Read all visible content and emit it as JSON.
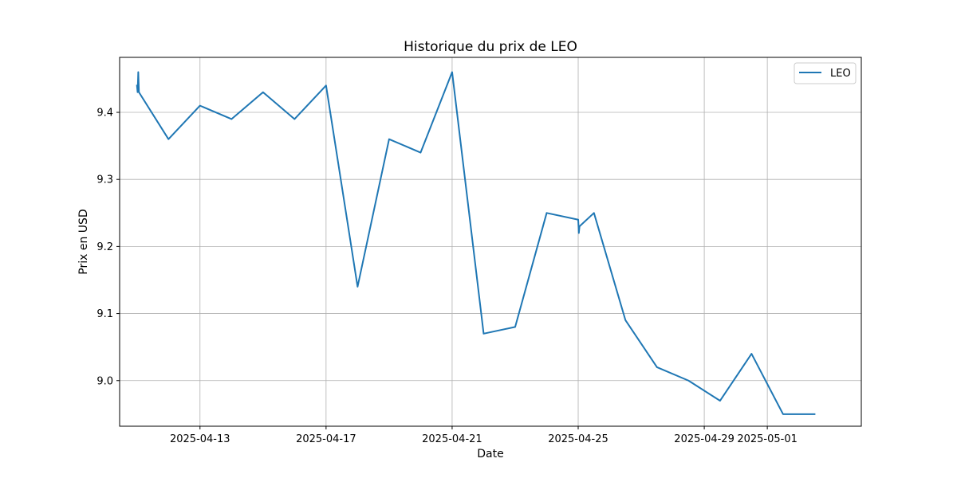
{
  "chart_data": {
    "type": "line",
    "title": "Historique du prix de LEO",
    "xlabel": "Date",
    "ylabel": "Prix en USD",
    "x_ticks": [
      "2025-04-13",
      "2025-04-17",
      "2025-04-21",
      "2025-04-25",
      "2025-04-29",
      "2025-05-01"
    ],
    "y_ticks": [
      "9.0",
      "9.1",
      "9.2",
      "9.3",
      "9.4"
    ],
    "xlim": [
      "2025-04-10T10:48",
      "2025-05-03T23:35"
    ],
    "ylim": [
      8.932,
      9.482
    ],
    "grid": true,
    "legend_position": "top-right",
    "series": [
      {
        "name": "LEO",
        "color": "#1f77b4",
        "points": [
          {
            "x": "2025-04-11T00:00",
            "y": 9.44
          },
          {
            "x": "2025-04-11T00:30",
            "y": 9.43
          },
          {
            "x": "2025-04-11T01:00",
            "y": 9.46
          },
          {
            "x": "2025-04-11T01:30",
            "y": 9.43
          },
          {
            "x": "2025-04-12T00:00",
            "y": 9.36
          },
          {
            "x": "2025-04-13T00:00",
            "y": 9.41
          },
          {
            "x": "2025-04-14T00:00",
            "y": 9.39
          },
          {
            "x": "2025-04-15T00:00",
            "y": 9.43
          },
          {
            "x": "2025-04-16T00:00",
            "y": 9.39
          },
          {
            "x": "2025-04-17T00:00",
            "y": 9.44
          },
          {
            "x": "2025-04-18T00:00",
            "y": 9.14
          },
          {
            "x": "2025-04-19T00:00",
            "y": 9.36
          },
          {
            "x": "2025-04-20T00:00",
            "y": 9.34
          },
          {
            "x": "2025-04-21T00:00",
            "y": 9.46
          },
          {
            "x": "2025-04-22T00:00",
            "y": 9.07
          },
          {
            "x": "2025-04-23T00:00",
            "y": 9.08
          },
          {
            "x": "2025-04-24T00:00",
            "y": 9.25
          },
          {
            "x": "2025-04-25T00:00",
            "y": 9.24
          },
          {
            "x": "2025-04-25T00:30",
            "y": 9.22
          },
          {
            "x": "2025-04-25T01:00",
            "y": 9.23
          },
          {
            "x": "2025-04-25T12:00",
            "y": 9.25
          },
          {
            "x": "2025-04-26T12:00",
            "y": 9.09
          },
          {
            "x": "2025-04-27T12:00",
            "y": 9.02
          },
          {
            "x": "2025-04-28T12:00",
            "y": 9.0
          },
          {
            "x": "2025-04-29T12:00",
            "y": 8.97
          },
          {
            "x": "2025-04-30T12:00",
            "y": 9.04
          },
          {
            "x": "2025-05-01T12:00",
            "y": 8.95
          },
          {
            "x": "2025-05-02T12:00",
            "y": 8.95
          }
        ]
      }
    ]
  }
}
